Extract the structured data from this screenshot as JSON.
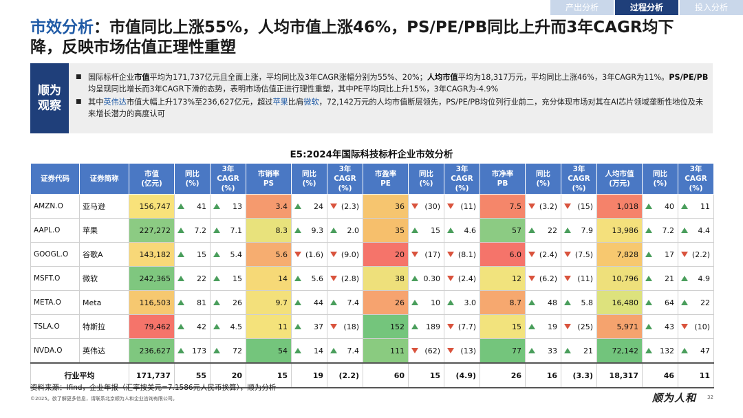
{
  "nav": {
    "tabs": [
      "产出分析",
      "过程分析",
      "投入分析"
    ],
    "active_index": 1
  },
  "title": {
    "highlight": "市效分析",
    "line1_rest": "：市值同比上涨55%，人均市值上涨46%，PS/PE/PB同比上升而3年CAGR均下",
    "line2": "降，反映市场估值正理性重塑"
  },
  "observation": {
    "label1": "顺为",
    "label2": "观察",
    "p1": {
      "a": "国际标杆企业",
      "b": "市值",
      "c": "平均为171,737亿元且全面上涨，平均同比及3年CAGR涨幅分别为55%、20%；",
      "d": "人均市值",
      "e": "平均为18,317万元，平均同比上涨46%，3年CAGR为11%。",
      "f": "PS/PE/PB",
      "g": "均呈现同比增长而3年CAGR下滑的态势，表明市场估值正进行理性重塑，其中PE平均同比上升15%，3年CAGR为-4.9%"
    },
    "p2": {
      "a": "其中",
      "b": "英伟达",
      "c": "市值大幅上升173%至236,627亿元，超过",
      "d": "苹果",
      "e": "比肩",
      "f": "微软",
      "g": "，72,142万元的人均市值断层领先，PS/PE/PB均位列行业前二，充分体现市场对其在AI芯片领域垄断性地位及未来增长潜力的高度认可"
    }
  },
  "table_title": "E5:2024年国际科技标杆企业市效分析",
  "headers": [
    [
      "证券代码"
    ],
    [
      "证券简称"
    ],
    [
      "市值",
      "(亿元)"
    ],
    [
      "同比",
      "(%)"
    ],
    [
      "3年CAGR",
      "(%)"
    ],
    [
      "市销率",
      "PS"
    ],
    [
      "同比",
      "(%)"
    ],
    [
      "3年CAGR",
      "(%)"
    ],
    [
      "市盈率",
      "PE"
    ],
    [
      "同比",
      "(%)"
    ],
    [
      "3年CAGR",
      "(%)"
    ],
    [
      "市净率",
      "PB"
    ],
    [
      "同比",
      "(%)"
    ],
    [
      "3年CAGR",
      "(%)"
    ],
    [
      "人均市值",
      "(万元)"
    ],
    [
      "同比",
      "(%)"
    ],
    [
      "3年CAGR",
      "(%)"
    ]
  ],
  "rows": [
    [
      "AMZN.O",
      "亚马逊",
      "156,747",
      "41",
      "13",
      "3.4",
      "24",
      "(2.3)",
      "36",
      "(30)",
      "(11)",
      "7.5",
      "(3.2)",
      "(15)",
      "1,018",
      "40",
      "11"
    ],
    [
      "AAPL.O",
      "苹果",
      "227,272",
      "7.2",
      "7.1",
      "8.3",
      "9.3",
      "2.0",
      "35",
      "15",
      "4.6",
      "57",
      "22",
      "7.9",
      "13,986",
      "7.2",
      "4.4"
    ],
    [
      "GOOGL.O",
      "谷歌A",
      "143,182",
      "15",
      "5.4",
      "5.6",
      "(1.6)",
      "(9.0)",
      "20",
      "(17)",
      "(8.1)",
      "6.0",
      "(2.4)",
      "(7.5)",
      "7,828",
      "17",
      "(2.2)"
    ],
    [
      "MSFT.O",
      "微软",
      "242,365",
      "22",
      "15",
      "14",
      "5.6",
      "(2.8)",
      "38",
      "0.30",
      "(2.4)",
      "12",
      "(6.2)",
      "(11)",
      "10,796",
      "21",
      "4.9"
    ],
    [
      "META.O",
      "Meta",
      "116,503",
      "81",
      "26",
      "9.7",
      "44",
      "7.4",
      "26",
      "10",
      "3.0",
      "8.7",
      "48",
      "5.8",
      "16,480",
      "64",
      "22"
    ],
    [
      "TSLA.O",
      "特斯拉",
      "79,462",
      "42",
      "4.5",
      "11",
      "37",
      "(18)",
      "152",
      "189",
      "(7.7)",
      "15",
      "19",
      "(25)",
      "5,971",
      "43",
      "(10)"
    ],
    [
      "NVDA.O",
      "英伟达",
      "236,627",
      "173",
      "72",
      "54",
      "14",
      "7.4",
      "111",
      "(62)",
      "(13)",
      "77",
      "33",
      "21",
      "72,142",
      "132",
      "47"
    ]
  ],
  "heat_colors": [
    [
      "#f8e27a",
      "#f59a6e",
      "#f6c56f",
      "#f5866a",
      "#f5826a"
    ],
    [
      "#8ccb83",
      "#e8e27c",
      "#f6bf6c",
      "#8ccb83",
      "#f4e07c"
    ],
    [
      "#f8d878",
      "#f6ad70",
      "#f5746a",
      "#f5746a",
      "#f7c86f"
    ],
    [
      "#7fc77f",
      "#f6d977",
      "#eee07b",
      "#f1e37d",
      "#eee07b"
    ],
    [
      "#f6c870",
      "#f3e07b",
      "#f6a36f",
      "#f6a86f",
      "#dde27d"
    ],
    [
      "#f5746a",
      "#f4e27b",
      "#74c57c",
      "#f2e37d",
      "#f5a36e"
    ],
    [
      "#7fc77f",
      "#74c57c",
      "#8acb80",
      "#74c57c",
      "#72c47c"
    ]
  ],
  "average": {
    "label": "行业平均",
    "values": [
      "171,737",
      "55",
      "20",
      "15",
      "19",
      "(2.2)",
      "60",
      "15",
      "(4.9)",
      "26",
      "16",
      "(3.3)",
      "18,317",
      "46",
      "11"
    ]
  },
  "source": "资料来源：Ifind，企业年报（汇率按美元=7.1586元人民币换算），顺为分析",
  "copyright": "©2025。欲了解更多信息，请联系北京顺为人和企业咨询有限公司。",
  "logo": "顺为人和",
  "page_number": "32"
}
